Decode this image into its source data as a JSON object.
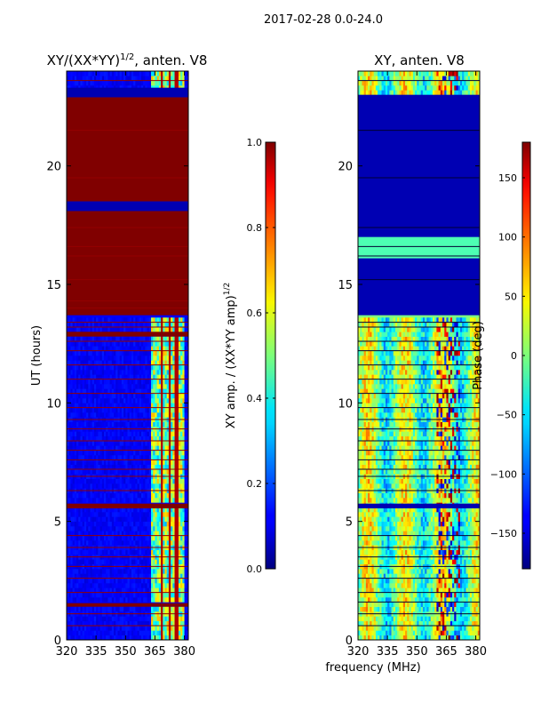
{
  "figure": {
    "suptitle": "2017-02-28 0.0-24.0",
    "common_xlabel": "frequency (MHz)"
  },
  "chart_data": [
    {
      "type": "heatmap",
      "title_prefix": "XY/(XX*YY)",
      "title_exponent": "1/2",
      "title_suffix": ", anten. V8",
      "ylabel": "UT (hours)",
      "xlim": [
        320,
        382
      ],
      "ylim": [
        0,
        24
      ],
      "x_ticks": [
        320,
        335,
        350,
        365,
        380
      ],
      "y_ticks": [
        0,
        5,
        10,
        15,
        20
      ],
      "colormap": "jet",
      "colorbar": {
        "label_prefix": "XY amp. / (XX*YY amp)",
        "label_exponent": "1/2",
        "range": [
          0.0,
          1.0
        ],
        "ticks": [
          "0.0",
          "0.2",
          "0.4",
          "0.6",
          "0.8",
          "1.0"
        ]
      },
      "features": {
        "baseline_value": 0.12,
        "high_band_start_mhz": 363,
        "high_band_end_mhz": 380,
        "high_band_gaps_mhz": [
          368.5,
          372.5,
          376
        ],
        "saturated_hours": [
          [
            13.7,
            18.1
          ],
          [
            18.5,
            22.9
          ],
          [
            12.8,
            13.0
          ],
          [
            5.55,
            5.75
          ],
          [
            1.4,
            1.55
          ],
          [
            16.9,
            17.05
          ],
          [
            15.8,
            16.0
          ]
        ],
        "masked_hours": [
          [
            18.1,
            18.5
          ],
          [
            22.9,
            23.3
          ]
        ],
        "horizontal_line_hours": [
          0.6,
          1.1,
          2.0,
          2.6,
          3.1,
          3.5,
          3.9,
          4.4,
          6.3,
          6.9,
          7.2,
          7.6,
          8.0,
          8.4,
          8.9,
          9.3,
          9.8,
          10.4,
          11.0,
          11.6,
          12.2,
          12.6,
          13.2,
          13.4,
          14.0,
          14.3,
          15.2,
          16.2,
          16.6,
          17.4,
          19.5,
          21.5,
          23.6
        ]
      }
    },
    {
      "type": "heatmap",
      "title": "XY, anten. V8",
      "xlim": [
        320,
        382
      ],
      "ylim": [
        0,
        24
      ],
      "x_ticks": [
        320,
        335,
        350,
        365,
        380
      ],
      "y_ticks": [
        0,
        5,
        10,
        15,
        20
      ],
      "colormap": "jet",
      "colorbar": {
        "label": "Phase (deg)",
        "range": [
          -180,
          180
        ],
        "ticks": [
          150,
          100,
          50,
          0,
          -50,
          -100,
          -150
        ]
      },
      "features": {
        "low_phase_hours": [
          [
            13.7,
            23.0
          ],
          [
            5.55,
            5.75
          ],
          [
            18.5,
            22.9
          ]
        ],
        "banded_mid_hours": [
          [
            16.1,
            17.0
          ]
        ],
        "noisy_hours": [
          [
            0.0,
            13.6
          ],
          [
            23.0,
            24.0
          ]
        ],
        "horizontal_line_hours": [
          0.6,
          1.1,
          1.6,
          2.0,
          2.6,
          3.1,
          3.5,
          3.9,
          4.4,
          6.3,
          6.9,
          7.2,
          7.6,
          8.0,
          8.4,
          8.9,
          9.3,
          9.8,
          10.4,
          11.0,
          11.6,
          12.2,
          12.6,
          13.2,
          13.4,
          15.2,
          16.2,
          16.6,
          17.4,
          19.5,
          21.5,
          23.6
        ]
      }
    }
  ]
}
